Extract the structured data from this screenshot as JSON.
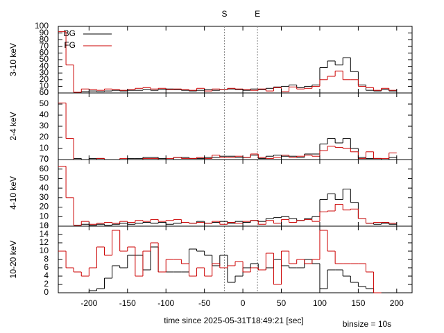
{
  "chart_data": [
    {
      "type": "histogram",
      "ylabel": "3-10 keV",
      "xlim": [
        -240,
        220
      ],
      "ylim": [
        0,
        100
      ],
      "yticks": [
        0,
        10,
        20,
        30,
        40,
        50,
        60,
        70,
        80,
        90,
        100
      ],
      "bins": [
        -240,
        -230,
        -220,
        -210,
        -200,
        -190,
        -180,
        -170,
        -160,
        -150,
        -140,
        -130,
        -120,
        -110,
        -100,
        -90,
        -80,
        -70,
        -60,
        -50,
        -40,
        -30,
        -20,
        -10,
        0,
        10,
        20,
        30,
        40,
        50,
        60,
        70,
        80,
        90,
        100,
        110,
        120,
        130,
        140,
        150,
        160,
        170,
        180,
        190,
        200,
        210
      ],
      "legend": "top-left",
      "markers": [
        {
          "label": "S",
          "x": -24
        },
        {
          "label": "E",
          "x": 19
        }
      ],
      "series": [
        {
          "name": "BG",
          "color": "#000000",
          "values": [
            null,
            null,
            1,
            2,
            3,
            2,
            3,
            4,
            3,
            4,
            4,
            5,
            4,
            5,
            6,
            5,
            4,
            3,
            4,
            5,
            4,
            5,
            6,
            5,
            4,
            6,
            5,
            7,
            9,
            10,
            12,
            8,
            10,
            12,
            38,
            48,
            42,
            53,
            32,
            12,
            4,
            3,
            5,
            3,
            null
          ]
        },
        {
          "name": "FG",
          "color": "#cc0000",
          "values": [
            92,
            42,
            1,
            6,
            5,
            4,
            6,
            5,
            4,
            5,
            7,
            8,
            6,
            7,
            5,
            6,
            5,
            4,
            7,
            3,
            6,
            5,
            7,
            6,
            5,
            4,
            6,
            3,
            8,
            2,
            9,
            6,
            7,
            10,
            20,
            25,
            33,
            20,
            20,
            10,
            8,
            4,
            7,
            4,
            null
          ]
        }
      ]
    },
    {
      "type": "histogram",
      "ylabel": "2-4 keV",
      "xlim": [
        -240,
        220
      ],
      "ylim": [
        0,
        60
      ],
      "yticks": [
        0,
        10,
        20,
        30,
        40,
        50,
        60
      ],
      "bins": [
        -240,
        -230,
        -220,
        -210,
        -200,
        -190,
        -180,
        -170,
        -160,
        -150,
        -140,
        -130,
        -120,
        -110,
        -100,
        -90,
        -80,
        -70,
        -60,
        -50,
        -40,
        -30,
        -20,
        -10,
        0,
        10,
        20,
        30,
        40,
        50,
        60,
        70,
        80,
        90,
        100,
        110,
        120,
        130,
        140,
        150,
        160,
        170,
        180,
        190,
        200,
        210
      ],
      "series": [
        {
          "color": "#000000",
          "values": [
            null,
            null,
            1,
            0,
            1,
            1,
            0,
            0,
            0,
            1,
            1,
            2,
            2,
            1,
            0,
            2,
            2,
            1,
            1,
            2,
            2,
            3,
            3,
            2,
            2,
            4,
            1,
            3,
            4,
            3,
            3,
            2,
            5,
            5,
            14,
            19,
            15,
            19,
            10,
            2,
            1,
            1,
            0,
            2,
            null
          ]
        },
        {
          "color": "#cc0000",
          "values": [
            51,
            19,
            0,
            0,
            0,
            1,
            0,
            0,
            1,
            0,
            0,
            1,
            1,
            0,
            1,
            2,
            1,
            1,
            2,
            1,
            4,
            2,
            2,
            3,
            2,
            5,
            2,
            1,
            2,
            4,
            2,
            3,
            4,
            3,
            8,
            12,
            11,
            10,
            7,
            1,
            7,
            1,
            1,
            6,
            null
          ]
        }
      ]
    },
    {
      "type": "histogram",
      "ylabel": "4-10 keV",
      "xlim": [
        -240,
        220
      ],
      "ylim": [
        0,
        70
      ],
      "yticks": [
        0,
        10,
        20,
        30,
        40,
        50,
        60,
        70
      ],
      "bins": [
        -240,
        -230,
        -220,
        -210,
        -200,
        -190,
        -180,
        -170,
        -160,
        -150,
        -140,
        -130,
        -120,
        -110,
        -100,
        -90,
        -80,
        -70,
        -60,
        -50,
        -40,
        -30,
        -20,
        -10,
        0,
        10,
        20,
        30,
        40,
        50,
        60,
        70,
        80,
        90,
        100,
        110,
        120,
        130,
        140,
        150,
        160,
        170,
        180,
        190,
        200,
        210
      ],
      "series": [
        {
          "color": "#000000",
          "values": [
            null,
            null,
            1,
            2,
            1,
            2,
            1,
            2,
            3,
            2,
            3,
            4,
            3,
            4,
            2,
            3,
            4,
            3,
            5,
            3,
            4,
            5,
            3,
            5,
            4,
            6,
            5,
            8,
            9,
            10,
            8,
            6,
            8,
            10,
            28,
            34,
            28,
            39,
            25,
            8,
            3,
            2,
            3,
            2,
            null
          ]
        },
        {
          "color": "#cc0000",
          "values": [
            63,
            30,
            1,
            5,
            2,
            3,
            4,
            3,
            5,
            4,
            6,
            5,
            7,
            5,
            6,
            7,
            4,
            3,
            4,
            3,
            5,
            2,
            4,
            3,
            5,
            6,
            2,
            6,
            3,
            7,
            4,
            6,
            7,
            5,
            15,
            16,
            23,
            17,
            18,
            8,
            3,
            4,
            4,
            3,
            null
          ]
        }
      ]
    },
    {
      "type": "histogram",
      "ylabel": "10-20 keV",
      "xlim": [
        -240,
        220
      ],
      "ylim": [
        0,
        16
      ],
      "yticks": [
        0,
        2,
        4,
        6,
        8,
        10,
        12,
        14,
        16
      ],
      "xticks": [
        -200,
        -150,
        -100,
        -50,
        0,
        50,
        100,
        150,
        200
      ],
      "xlabel": "time since 2025-05-31T18:49:21 [sec]",
      "annotation": "binsize = 10s",
      "bins": [
        -240,
        -230,
        -220,
        -210,
        -200,
        -190,
        -180,
        -170,
        -160,
        -150,
        -140,
        -130,
        -120,
        -110,
        -100,
        -90,
        -80,
        -70,
        -60,
        -50,
        -40,
        -30,
        -20,
        -10,
        0,
        10,
        20,
        30,
        40,
        50,
        60,
        70,
        80,
        90,
        100,
        110,
        120,
        130,
        140,
        150,
        160,
        170,
        180,
        190,
        200,
        210
      ],
      "series": [
        {
          "color": "#000000",
          "values": [
            null,
            null,
            0,
            0,
            0.5,
            1,
            3.5,
            6.5,
            6,
            9,
            9,
            5.5,
            11,
            5,
            5,
            5,
            5,
            10.5,
            10,
            9,
            6.5,
            9,
            2.5,
            4,
            6,
            7,
            5.5,
            6,
            8,
            6.5,
            6,
            6,
            8,
            7,
            1,
            5.5,
            5.5,
            4,
            2.5,
            1.5,
            1,
            0,
            null,
            null,
            null
          ]
        },
        {
          "color": "#cc0000",
          "values": [
            10,
            6,
            5,
            4,
            6,
            11,
            9,
            15,
            10,
            11,
            4,
            10,
            12,
            5,
            8,
            8,
            7,
            4,
            6,
            4,
            7,
            6,
            6.5,
            7.5,
            5,
            6,
            5.5,
            9.5,
            2,
            10,
            7,
            8,
            7,
            8,
            15,
            10,
            7,
            7,
            7,
            7,
            5,
            0,
            null,
            null,
            null
          ]
        }
      ]
    }
  ]
}
